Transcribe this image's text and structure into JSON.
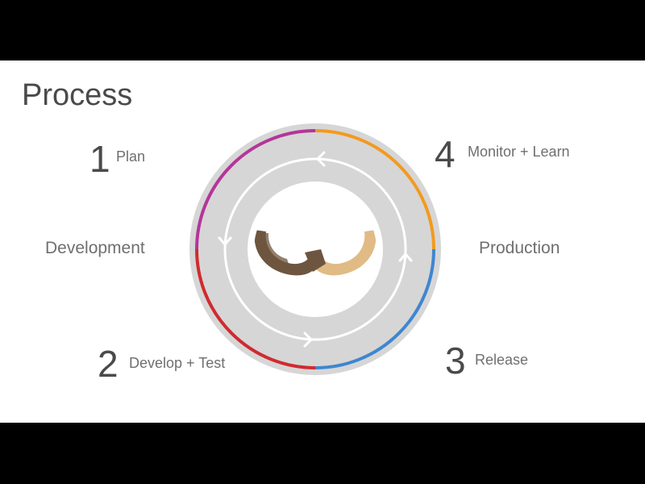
{
  "title": "Process",
  "zones": {
    "left": "Development",
    "right": "Production"
  },
  "steps": [
    {
      "number": "1",
      "label": "Plan",
      "color": "#b4359a"
    },
    {
      "number": "2",
      "label": "Develop + Test",
      "color": "#d02a2f"
    },
    {
      "number": "3",
      "label": "Release",
      "color": "#3f86d0"
    },
    {
      "number": "4",
      "label": "Monitor + Learn",
      "color": "#f29a1f"
    }
  ],
  "colors": {
    "ring": "#d6d6d6",
    "cycle_arrows": "#ffffff",
    "knot_dark": "#6e553f",
    "knot_light": "#e0bb86"
  },
  "icons": {
    "center": "infinity-knot-icon",
    "cycle": "cycle-arrows-icon"
  }
}
